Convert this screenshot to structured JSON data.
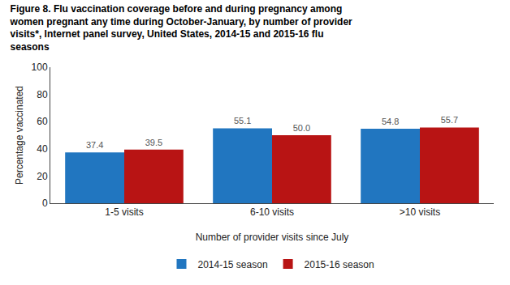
{
  "chart_data": {
    "type": "bar",
    "title": "Figure 8. Flu vaccination coverage before and during pregnancy among\nwomen pregnant any time during October-January, by number of provider\nvisits*, Internet panel survey, United States, 2014-15 and 2015-16 flu\nseasons",
    "categories": [
      "1-5 visits",
      "6-10 visits",
      ">10 visits"
    ],
    "series": [
      {
        "name": "2014-15 season",
        "color": "#2176C0",
        "values": [
          37.4,
          55.1,
          54.8
        ]
      },
      {
        "name": "2015-16 season",
        "color": "#B81414",
        "values": [
          39.5,
          50.0,
          55.7
        ],
        "value_labels": [
          "39.5",
          "50.0",
          "55.7"
        ]
      }
    ],
    "xlabel": "Number of provider visits since July",
    "ylabel": "Percentage vaccinated",
    "ylim": [
      0,
      100
    ],
    "yticks": [
      0,
      20,
      40,
      60,
      80,
      100
    ],
    "grid": false,
    "legend": "bottom",
    "data_labels": true
  }
}
